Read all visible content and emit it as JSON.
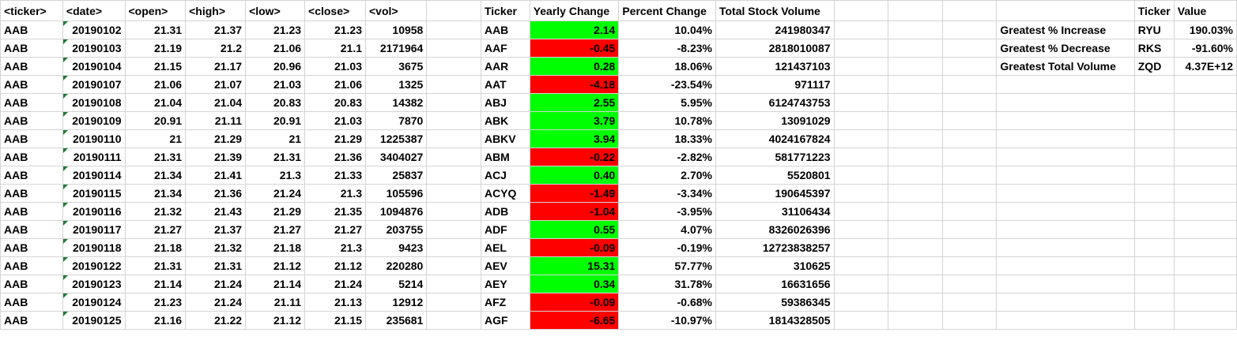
{
  "raw": {
    "headers": [
      "<ticker>",
      "<date>",
      "<open>",
      "<high>",
      "<low>",
      "<close>",
      "<vol>"
    ],
    "rows": [
      [
        "AAB",
        "20190102",
        "21.31",
        "21.37",
        "21.23",
        "21.23",
        "10958"
      ],
      [
        "AAB",
        "20190103",
        "21.19",
        "21.2",
        "21.06",
        "21.1",
        "2171964"
      ],
      [
        "AAB",
        "20190104",
        "21.15",
        "21.17",
        "20.96",
        "21.03",
        "3675"
      ],
      [
        "AAB",
        "20190107",
        "21.06",
        "21.07",
        "21.03",
        "21.06",
        "1325"
      ],
      [
        "AAB",
        "20190108",
        "21.04",
        "21.04",
        "20.83",
        "20.83",
        "14382"
      ],
      [
        "AAB",
        "20190109",
        "20.91",
        "21.11",
        "20.91",
        "21.03",
        "7870"
      ],
      [
        "AAB",
        "20190110",
        "21",
        "21.29",
        "21",
        "21.29",
        "1225387"
      ],
      [
        "AAB",
        "20190111",
        "21.31",
        "21.39",
        "21.31",
        "21.36",
        "3404027"
      ],
      [
        "AAB",
        "20190114",
        "21.34",
        "21.41",
        "21.3",
        "21.33",
        "25837"
      ],
      [
        "AAB",
        "20190115",
        "21.34",
        "21.36",
        "21.24",
        "21.3",
        "105596"
      ],
      [
        "AAB",
        "20190116",
        "21.32",
        "21.43",
        "21.29",
        "21.35",
        "1094876"
      ],
      [
        "AAB",
        "20190117",
        "21.27",
        "21.37",
        "21.27",
        "21.27",
        "203755"
      ],
      [
        "AAB",
        "20190118",
        "21.18",
        "21.32",
        "21.18",
        "21.3",
        "9423"
      ],
      [
        "AAB",
        "20190122",
        "21.31",
        "21.31",
        "21.12",
        "21.12",
        "220280"
      ],
      [
        "AAB",
        "20190123",
        "21.14",
        "21.24",
        "21.14",
        "21.24",
        "5214"
      ],
      [
        "AAB",
        "20190124",
        "21.23",
        "21.24",
        "21.11",
        "21.13",
        "12912"
      ],
      [
        "AAB",
        "20190125",
        "21.16",
        "21.22",
        "21.12",
        "21.15",
        "235681"
      ]
    ]
  },
  "summary": {
    "headers": [
      "Ticker",
      "Yearly Change",
      "Percent Change",
      "Total Stock Volume"
    ],
    "rows": [
      [
        "AAB",
        "2.14",
        "10.04%",
        "241980347"
      ],
      [
        "AAF",
        "-0.45",
        "-8.23%",
        "2818010087"
      ],
      [
        "AAR",
        "0.28",
        "18.06%",
        "121437103"
      ],
      [
        "AAT",
        "-4.18",
        "-23.54%",
        "971117"
      ],
      [
        "ABJ",
        "2.55",
        "5.95%",
        "6124743753"
      ],
      [
        "ABK",
        "3.79",
        "10.78%",
        "13091029"
      ],
      [
        "ABKV",
        "3.94",
        "18.33%",
        "4024167824"
      ],
      [
        "ABM",
        "-0.22",
        "-2.82%",
        "581771223"
      ],
      [
        "ACJ",
        "0.40",
        "2.70%",
        "5520801"
      ],
      [
        "ACYQ",
        "-1.49",
        "-3.34%",
        "190645397"
      ],
      [
        "ADB",
        "-1.04",
        "-3.95%",
        "31106434"
      ],
      [
        "ADF",
        "0.55",
        "4.07%",
        "8326026396"
      ],
      [
        "AEL",
        "-0.09",
        "-0.19%",
        "12723838257"
      ],
      [
        "AEV",
        "15.31",
        "57.77%",
        "310625"
      ],
      [
        "AEY",
        "0.34",
        "31.78%",
        "16631656"
      ],
      [
        "AFZ",
        "-0.09",
        "-0.68%",
        "59386345"
      ],
      [
        "AGF",
        "-6.65",
        "-10.97%",
        "1814328505"
      ]
    ]
  },
  "greatest": {
    "headers": [
      "Ticker",
      "Value"
    ],
    "rows": [
      [
        "Greatest % Increase",
        "RYU",
        "190.03%"
      ],
      [
        "Greatest % Decrease",
        "RKS",
        "-91.60%"
      ],
      [
        "Greatest Total Volume",
        "ZQD",
        "4.37E+12"
      ]
    ]
  },
  "colors": {
    "positive": "#00ff00",
    "negative": "#ff0000",
    "grid": "#d4d4d4"
  }
}
